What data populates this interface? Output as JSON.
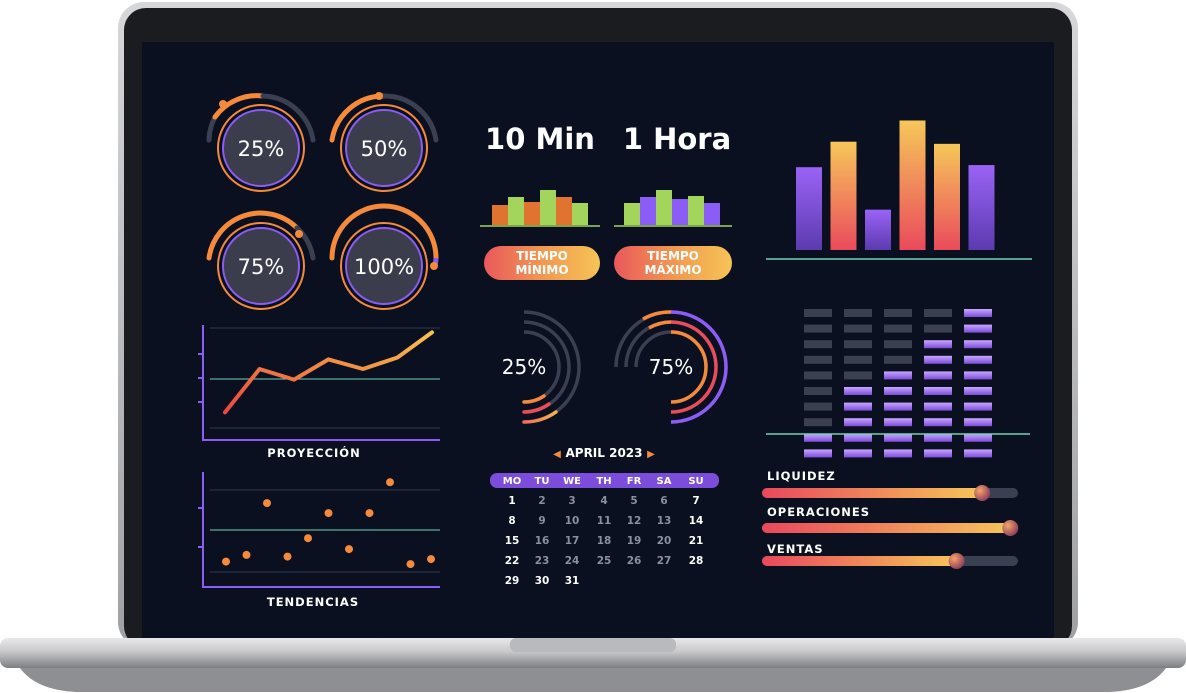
{
  "gauges": [
    {
      "label": "25%",
      "value": 25
    },
    {
      "label": "50%",
      "value": 50
    },
    {
      "label": "75%",
      "value": 75
    },
    {
      "label": "100%",
      "value": 100
    }
  ],
  "timers": [
    {
      "title": "10 Min",
      "pill": [
        "TIEMPO",
        "MÍNIMO"
      ]
    },
    {
      "title": "1 Hora",
      "pill": [
        "TIEMPO",
        "MÁXIMO"
      ]
    }
  ],
  "rings": [
    {
      "label": "25%",
      "value": 25
    },
    {
      "label": "75%",
      "value": 75
    }
  ],
  "calendar": {
    "title": "APRIL 2023",
    "weekdays": [
      "MO",
      "TU",
      "WE",
      "TH",
      "FR",
      "SA",
      "SU"
    ],
    "weeks": [
      [
        "1",
        "2",
        "3",
        "4",
        "5",
        "6",
        "7"
      ],
      [
        "8",
        "9",
        "10",
        "11",
        "12",
        "13",
        "14"
      ],
      [
        "15",
        "16",
        "17",
        "18",
        "19",
        "20",
        "21"
      ],
      [
        "22",
        "23",
        "24",
        "25",
        "26",
        "27",
        "28"
      ],
      [
        "29",
        "30",
        "31",
        "",
        "",
        "",
        ""
      ]
    ]
  },
  "line_chart": {
    "label": "PROYECCIÓN"
  },
  "scatter_chart": {
    "label": "TENDENCIAS"
  },
  "sliders": [
    {
      "label": "LIQUIDEZ",
      "value": 0.86
    },
    {
      "label": "OPERACIONES",
      "value": 0.97
    },
    {
      "label": "VENTAS",
      "value": 0.76
    }
  ],
  "colors": {
    "background": "#0b1020",
    "orange": "#f58a3a",
    "purple": "#8b5cf6",
    "green": "#a3d45c",
    "yellow": "#f4c95d",
    "red": "#ea4c5a",
    "teal": "#6fd3b4",
    "track": "#3a3f52"
  },
  "chart_data": [
    {
      "type": "bar",
      "values": [
        3.9,
        5.1,
        1.9,
        6.1,
        5.0,
        4.0
      ],
      "ylim": [
        0,
        6.5
      ]
    },
    {
      "type": "line",
      "values": [
        1,
        5.5,
        4.4,
        6.5,
        5.5,
        6.7,
        9.3
      ],
      "ylim": [
        0,
        10
      ]
    },
    {
      "type": "scatter",
      "x": [
        1,
        2,
        3,
        4,
        5,
        6,
        7,
        8,
        9,
        10,
        11
      ],
      "y": [
        1.0,
        1.8,
        8.0,
        1.6,
        3.8,
        6.8,
        2.5,
        6.8,
        10.5,
        0.7,
        1.3
      ],
      "ylim": [
        0,
        11
      ]
    },
    {
      "type": "bar",
      "categories": [
        "1",
        "2",
        "3",
        "4",
        "5"
      ],
      "values": [
        2,
        5,
        6,
        8,
        10
      ],
      "ylim": [
        0,
        10
      ]
    }
  ]
}
